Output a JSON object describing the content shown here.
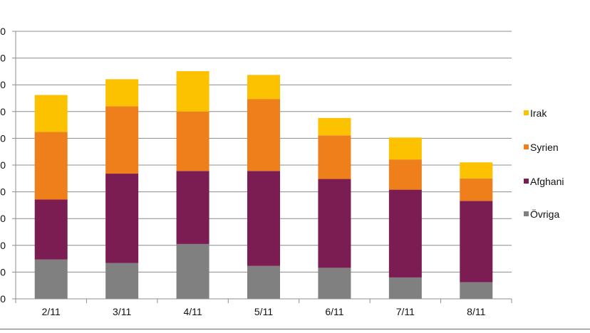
{
  "chart_data": {
    "type": "bar",
    "stacked": true,
    "title": "",
    "xlabel": "",
    "ylabel": "",
    "categories": [
      "2/11",
      "3/11",
      "4/11",
      "5/11",
      "6/11",
      "7/11",
      "8/11"
    ],
    "ylim": [
      0,
      100
    ],
    "yticks": [
      0,
      10,
      20,
      30,
      40,
      50,
      60,
      70,
      80,
      90,
      100
    ],
    "ytick_labels": [
      "0",
      "0",
      "0",
      "0",
      "0",
      "0",
      "0",
      "0",
      "0",
      "0",
      "0"
    ],
    "grid": true,
    "legend_position": "right",
    "series": [
      {
        "name": "Övriga",
        "color": "#808080",
        "values": [
          14.7,
          13.4,
          20.5,
          12.3,
          11.6,
          8.0,
          6.2
        ]
      },
      {
        "name": "Afghanistan",
        "color": "#7b1c52",
        "values": [
          22.4,
          33.4,
          27.3,
          35.5,
          33.2,
          32.8,
          30.4
        ]
      },
      {
        "name": "Syrien",
        "color": "#ee7f1b",
        "values": [
          25.3,
          25.2,
          22.2,
          26.9,
          16.3,
          11.3,
          8.4
        ]
      },
      {
        "name": "Irak",
        "color": "#fcc200",
        "values": [
          13.8,
          10.1,
          15.1,
          9.0,
          6.5,
          8.2,
          6.0
        ]
      }
    ],
    "legend_order": [
      "Irak",
      "Syrien",
      "Afghanistan",
      "Övriga"
    ],
    "legend_display": {
      "Irak": "Irak",
      "Syrien": "Syrien",
      "Afghanistan": "Afghani",
      "Övriga": "Övriga"
    }
  }
}
